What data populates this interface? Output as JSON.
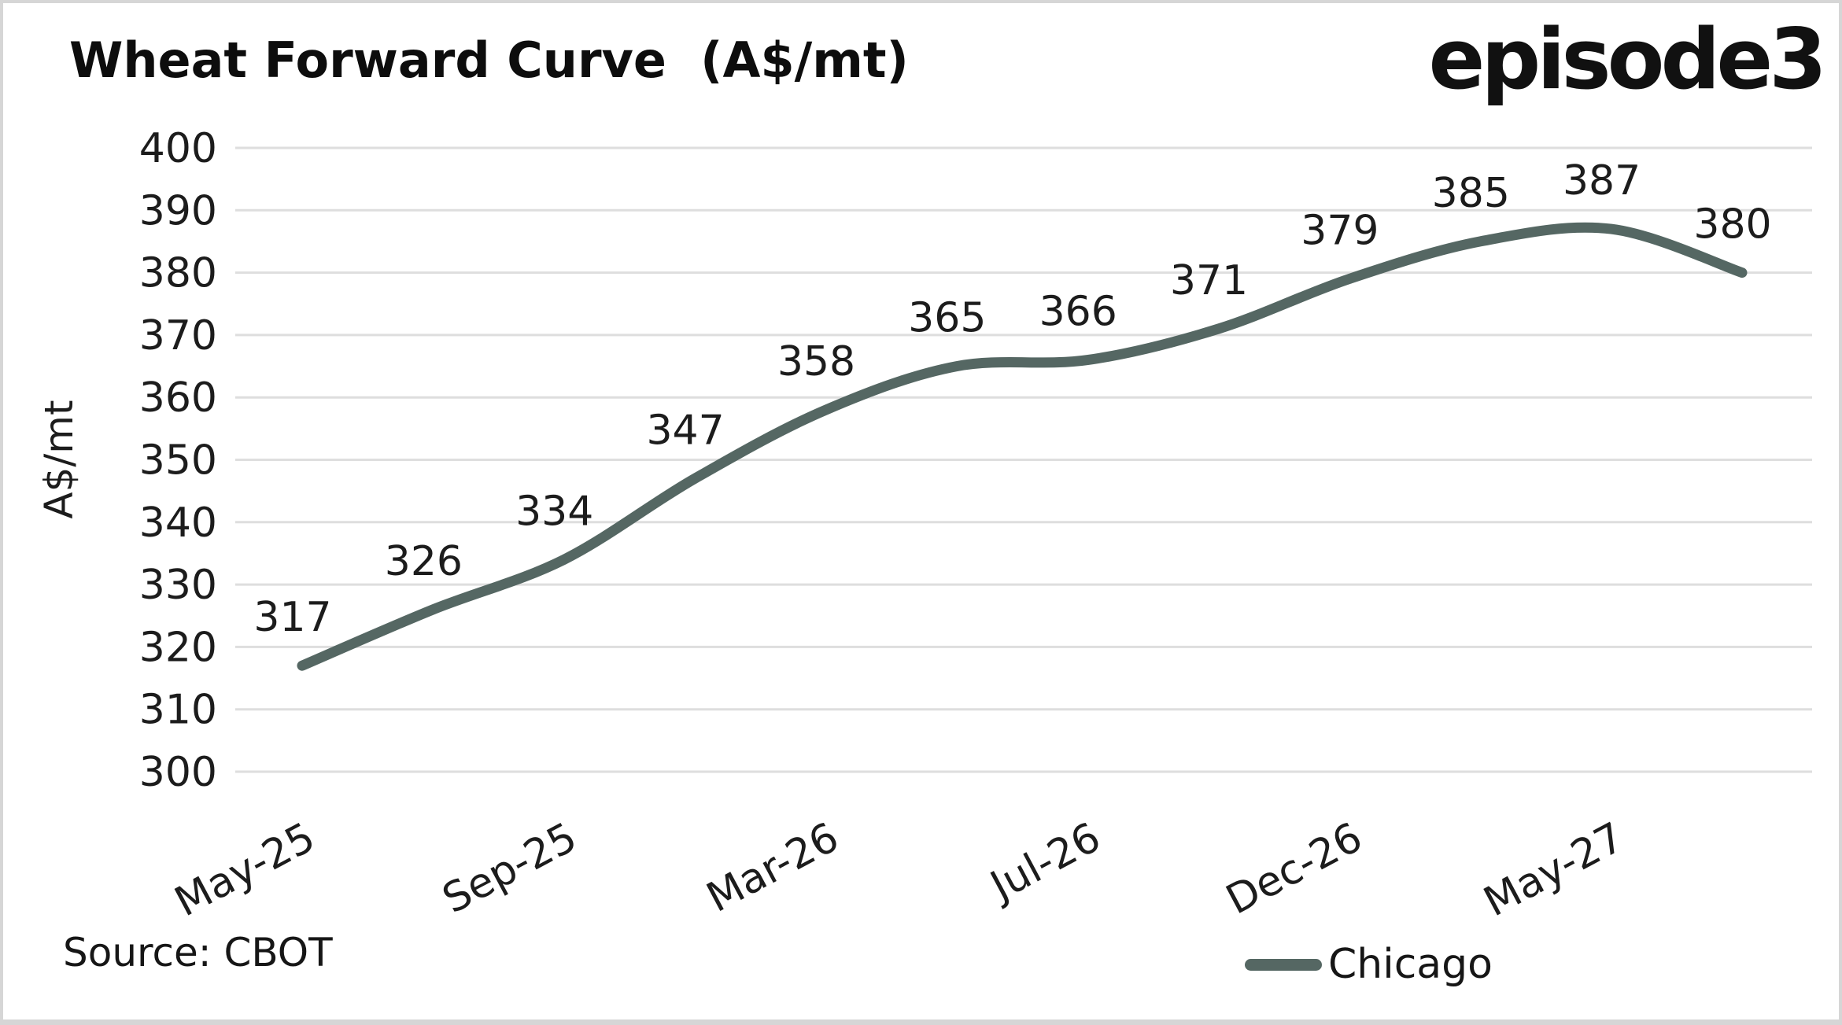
{
  "header": {
    "title": "Wheat Forward Curve  (A$/mt)",
    "logo": "episode3"
  },
  "source": {
    "label": "Source: CBOT"
  },
  "legend": {
    "items": [
      {
        "label": "Chicago",
        "color": "#556763"
      }
    ]
  },
  "colors": {
    "line": "#556763",
    "grid": "#dedede",
    "text": "#1c1c1c",
    "title_text": "#0d0d0d",
    "border": "#d6d6d6",
    "background": "#ffffff"
  },
  "chart_data": {
    "type": "line",
    "title": "Wheat Forward Curve (A$/mt)",
    "xlabel": "",
    "ylabel": "A$/mt",
    "ylim": [
      300,
      400
    ],
    "y_tick_step": 10,
    "grid": "horizontal",
    "legend_position": "bottom-right",
    "data_labels_shown": true,
    "series": [
      {
        "name": "Chicago",
        "color": "#556763",
        "smooth": true,
        "values": [
          317,
          326,
          334,
          347,
          358,
          365,
          366,
          371,
          379,
          385,
          387,
          380
        ]
      }
    ],
    "x_tick_labels": [
      "May-25",
      "Sep-25",
      "Mar-26",
      "Jul-26",
      "Dec-26",
      "May-27"
    ],
    "x_tick_point_indices": [
      0,
      2,
      4,
      6,
      8,
      10
    ]
  }
}
